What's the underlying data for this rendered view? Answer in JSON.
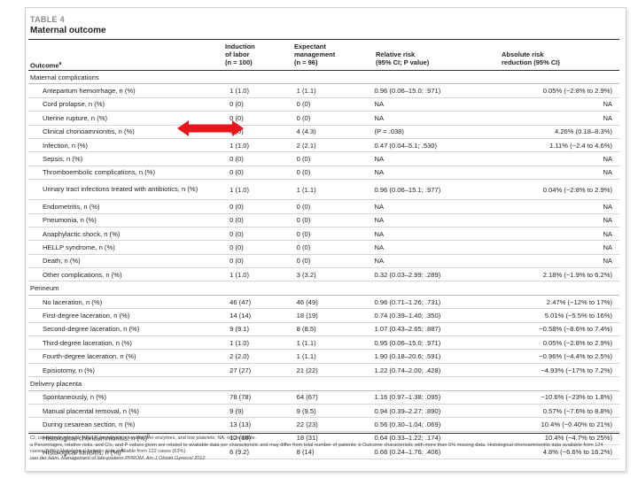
{
  "table": {
    "label": "TABLE 4",
    "title": "Maternal outcome",
    "columns": {
      "outcome": "Outcome",
      "outcome_sup": "a",
      "induction": [
        "Induction",
        "of labor",
        "(n = 100)"
      ],
      "expectant": [
        "Expectant",
        "management",
        "(n = 96)"
      ],
      "relative_risk": [
        "Relative risk",
        "(95% CI; P value)"
      ],
      "absolute_risk": [
        "Absolute risk",
        "reduction (95% CI)"
      ]
    },
    "sections": [
      {
        "title": "Maternal complications",
        "rows": [
          {
            "outcome": "Antepartum hemorrhage, n (%)",
            "induction": "1 (1.0)",
            "expectant": "1 (1.1)",
            "rr": "0.96 (0.06–15.0; .971)",
            "arr": "0.05% (−2.8% to 2.9%)"
          },
          {
            "outcome": "Cord prolapse, n (%)",
            "induction": "0 (0)",
            "expectant": "0 (0)",
            "rr": "NA",
            "arr": "NA"
          },
          {
            "outcome": "Uterine rupture, n (%)",
            "induction": "0 (0)",
            "expectant": "0 (0)",
            "rr": "NA",
            "arr": "NA"
          },
          {
            "outcome": "Clinical chorioamnionitis, n (%)",
            "induction": "0 (0)",
            "expectant": "4 (4.3)",
            "rr": "(P = .038)",
            "arr": "4.26% (0.18–8.3%)"
          },
          {
            "outcome": "Infection, n (%)",
            "induction": "1 (1.0)",
            "expectant": "2 (2.1)",
            "rr": "0.47 (0.04–5.1; .530)",
            "arr": "1.11% (−2.4 to 4.6%)"
          },
          {
            "outcome": "Sepsis, n (%)",
            "induction": "0 (0)",
            "expectant": "0 (0)",
            "rr": "NA",
            "arr": "NA"
          },
          {
            "outcome": "Thromboembolic complications, n (%)",
            "induction": "0 (0)",
            "expectant": "0 (0)",
            "rr": "NA",
            "arr": "NA"
          },
          {
            "outcome": "Urinary tract infections treated with antibiotics, n (%)",
            "induction": "1 (1.0)",
            "expectant": "1 (1.1)",
            "rr": "0.96 (0.06–15.1; .977)",
            "arr": "0.04% (−2.8% to 2.9%)",
            "tall": true
          },
          {
            "outcome": "Endometritis, n (%)",
            "induction": "0 (0)",
            "expectant": "0 (0)",
            "rr": "NA",
            "arr": "NA"
          },
          {
            "outcome": "Pneumonia, n (%)",
            "induction": "0 (0)",
            "expectant": "0 (0)",
            "rr": "NA",
            "arr": "NA"
          },
          {
            "outcome": "Anaphylactic shock, n (%)",
            "induction": "0 (0)",
            "expectant": "0 (0)",
            "rr": "NA",
            "arr": "NA"
          },
          {
            "outcome": "HELLP syndrome, n (%)",
            "induction": "0 (0)",
            "expectant": "0 (0)",
            "rr": "NA",
            "arr": "NA"
          },
          {
            "outcome": "Death, n (%)",
            "induction": "0 (0)",
            "expectant": "0 (0)",
            "rr": "NA",
            "arr": "NA"
          },
          {
            "outcome": "Other complications, n (%)",
            "induction": "1 (1.0)",
            "expectant": "3 (3.2)",
            "rr": "0.32 (0.03–2.99; .289)",
            "arr": "2.18% (−1.9% to 6.2%)"
          }
        ]
      },
      {
        "title": "Perineum",
        "rows": [
          {
            "outcome": "No laceration, n (%)",
            "induction": "46 (47)",
            "expectant": "46 (49)",
            "rr": "0.96 (0.71–1.26; .731)",
            "arr": "2.47% (−12% to 17%)"
          },
          {
            "outcome": "First-degree laceration, n (%)",
            "induction": "14 (14)",
            "expectant": "18 (19)",
            "rr": "0.74 (0.39–1.40; .350)",
            "arr": "5.01% (−5.5% to 16%)"
          },
          {
            "outcome": "Second-degree laceration, n (%)",
            "induction": "9 (9.1)",
            "expectant": "8 (8.5)",
            "rr": "1.07 (0.43–2.65; .887)",
            "arr": "−0.58% (−8.6% to 7.4%)"
          },
          {
            "outcome": "Third-degree laceration, n (%)",
            "induction": "1 (1.0)",
            "expectant": "1 (1.1)",
            "rr": "0.95 (0.06–15.0; .971)",
            "arr": "0.05% (−2.8% to 2.9%)"
          },
          {
            "outcome": "Fourth-degree laceration, n (%)",
            "induction": "2 (2.0)",
            "expectant": "1 (1.1)",
            "rr": "1.90 (0.18–20.6; .591)",
            "arr": "−0.96% (−4.4% to 2.5%)"
          },
          {
            "outcome": "Episiotomy, n (%)",
            "induction": "27 (27)",
            "expectant": "21 (22)",
            "rr": "1.22 (0.74–2.00; .428)",
            "arr": "−4.93% (−17% to 7.2%)"
          }
        ]
      },
      {
        "title": "Delivery placenta",
        "rows": [
          {
            "outcome": "Spontaneously, n (%)",
            "induction": "78 (78)",
            "expectant": "64 (67)",
            "rr": "1.16 (0.97–1.38; .095)",
            "arr": "−10.6% (−23% to 1.8%)"
          },
          {
            "outcome": "Manual placental removal, n (%)",
            "induction": "9 (9)",
            "expectant": "9 (9.5)",
            "rr": "0.94 (0.39–2.27; .890)",
            "arr": "0.57% (−7.6% to 8.8%)"
          },
          {
            "outcome": "During cesarean section, n (%)",
            "induction": "13 (13)",
            "expectant": "22 (23)",
            "rr": "0.56 (0.30–1.04; .069)",
            "arr": "10.4% (−0.40% to 21%)"
          },
          {
            "outcome": "Histological chorioamnionitis, n (%)",
            "sup": "b",
            "induction": "12 (18)",
            "expectant": "18 (31)",
            "rr": "0.64 (0.33–1.22; .174)",
            "arr": "10.4% (−4.7% to 25%)"
          },
          {
            "outcome": "Histological funisitis, n (%)",
            "sup": "b",
            "induction": "6 (9.2)",
            "expectant": "8 (14)",
            "rr": "0.66 (0.24–1.76; .406)",
            "arr": "4.8% (−6.6% to 16.2%)"
          }
        ]
      }
    ],
    "footnotes": [
      "CI, confidence interval; HELLP, hemolysis, elevated liver enzymes, and low platelets; NA, not available.",
      "a Percentages, relative risks, and CIs, and P values given are related to available data per characteristic and may differ from total number of patients; b Outcome characteristic with more than 5% missing data. Histological chorioamnionitis data available from 124 cases (64%); Histological funisitis data available from 122 cases (63%).",
      "van der Ham. Management of late-preterm PPROM. Am J Obstet Gynecol 2012."
    ]
  },
  "annotation": {
    "arrow_color": "#e8161c"
  }
}
